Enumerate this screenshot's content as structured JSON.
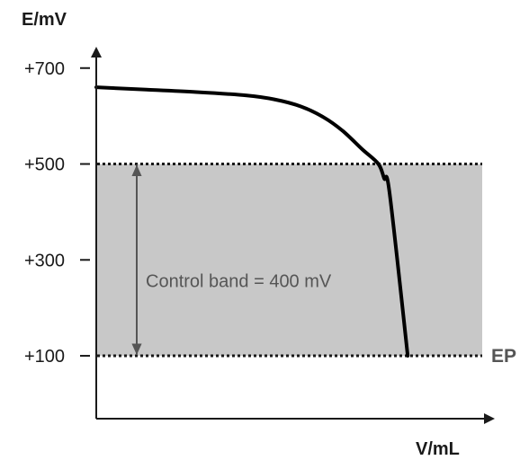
{
  "chart_data": {
    "type": "line",
    "ylabel": "E/mV",
    "xlabel": "V/mL",
    "ylim": [
      -50,
      790
    ],
    "xlim": [
      0,
      100
    ],
    "y_ticks": [
      {
        "value": 700,
        "label": "+700"
      },
      {
        "value": 500,
        "label": "+500"
      },
      {
        "value": 300,
        "label": "+300"
      },
      {
        "value": 100,
        "label": "+100"
      }
    ],
    "series": [
      {
        "x": [
          0,
          13,
          26,
          39,
          46,
          53,
          59,
          64,
          69,
          73.1,
          74.6,
          76,
          80.7
        ],
        "y": [
          660,
          655,
          650,
          643,
          635,
          620,
          597,
          568,
          530,
          500,
          470,
          440,
          100
        ]
      }
    ],
    "band": {
      "from": 100,
      "to": 500,
      "color": "#c8c8c8"
    },
    "band_label": "Control band = 400 mV",
    "reference_lines": [
      {
        "value": 500
      },
      {
        "value": 100,
        "label": "EP"
      }
    ],
    "grid": false,
    "colors": {
      "curve": "#000000",
      "axis": "#1a1a1a",
      "band": "#c8c8c8",
      "arrow": "#555555",
      "ep_label": "#555555"
    }
  }
}
